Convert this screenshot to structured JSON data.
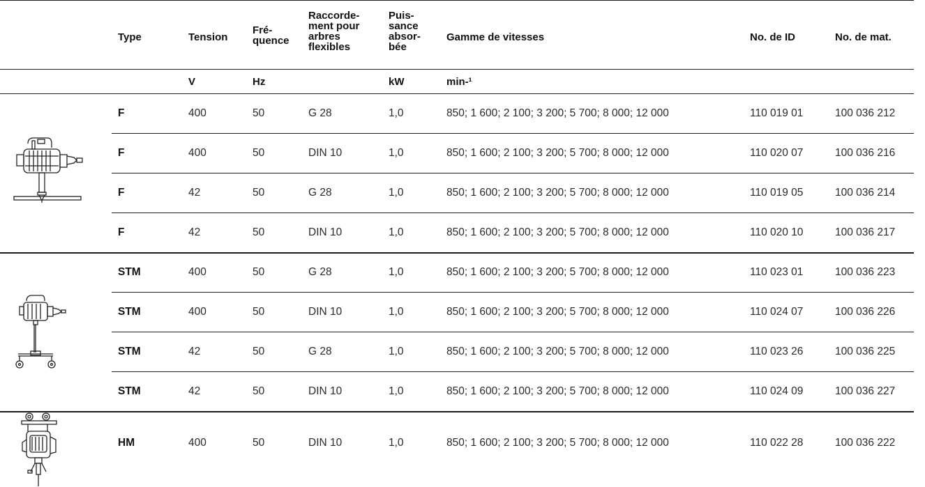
{
  "headers": {
    "type": "Type",
    "tension": "Tension",
    "frequence": "Fré-\nquence",
    "raccordement": "Raccorde-\nment pour\narbres\nflexibles",
    "puissance": "Puis-\nsance\nabsor-\nbée",
    "gamme": "Gamme de vitesses",
    "id": "No. de ID",
    "mat": "No. de mat."
  },
  "units": {
    "tension": "V",
    "frequence": "Hz",
    "puissance": "kW",
    "gamme": "min-¹"
  },
  "icons": [
    "motor-on-base-plate-icon",
    "motor-on-wheeled-stand-icon",
    "hand-held-motor-icon"
  ],
  "rows": [
    {
      "type": "F",
      "tension": "400",
      "freq": "50",
      "raccord": "G 28",
      "puissance": "1,0",
      "gamme": "850; 1 600; 2 100; 3 200; 5 700; 8 000; 12 000",
      "id": "110 019 01",
      "mat": "100 036 212"
    },
    {
      "type": "F",
      "tension": "400",
      "freq": "50",
      "raccord": "DIN 10",
      "puissance": "1,0",
      "gamme": "850; 1 600; 2 100; 3 200; 5 700; 8 000; 12 000",
      "id": "110 020 07",
      "mat": "100 036 216"
    },
    {
      "type": "F",
      "tension": "42",
      "freq": "50",
      "raccord": "G 28",
      "puissance": "1,0",
      "gamme": "850; 1 600; 2 100; 3 200; 5 700; 8 000; 12 000",
      "id": "110 019 05",
      "mat": "100 036 214"
    },
    {
      "type": "F",
      "tension": "42",
      "freq": "50",
      "raccord": "DIN 10",
      "puissance": "1,0",
      "gamme": "850; 1 600; 2 100; 3 200; 5 700; 8 000; 12 000",
      "id": "110 020 10",
      "mat": "100 036 217"
    },
    {
      "type": "STM",
      "tension": "400",
      "freq": "50",
      "raccord": "G 28",
      "puissance": "1,0",
      "gamme": "850; 1 600; 2 100; 3 200; 5 700; 8 000; 12 000",
      "id": "110 023 01",
      "mat": "100 036 223"
    },
    {
      "type": "STM",
      "tension": "400",
      "freq": "50",
      "raccord": "DIN 10",
      "puissance": "1,0",
      "gamme": "850; 1 600; 2 100; 3 200; 5 700; 8 000; 12 000",
      "id": "110 024 07",
      "mat": "100 036 226"
    },
    {
      "type": "STM",
      "tension": "42",
      "freq": "50",
      "raccord": "G 28",
      "puissance": "1,0",
      "gamme": "850; 1 600; 2 100; 3 200; 5 700; 8 000; 12 000",
      "id": "110 023 26",
      "mat": "100 036 225"
    },
    {
      "type": "STM",
      "tension": "42",
      "freq": "50",
      "raccord": "DIN 10",
      "puissance": "1,0",
      "gamme": "850; 1 600; 2 100; 3 200; 5 700; 8 000; 12 000",
      "id": "110 024 09",
      "mat": "100 036 227"
    },
    {
      "type": "HM",
      "tension": "400",
      "freq": "50",
      "raccord": "DIN 10",
      "puissance": "1,0",
      "gamme": "850; 1 600; 2 100; 3 200; 5 700; 8 000; 12 000",
      "id": "110 022 28",
      "mat": "100 036 222"
    }
  ]
}
